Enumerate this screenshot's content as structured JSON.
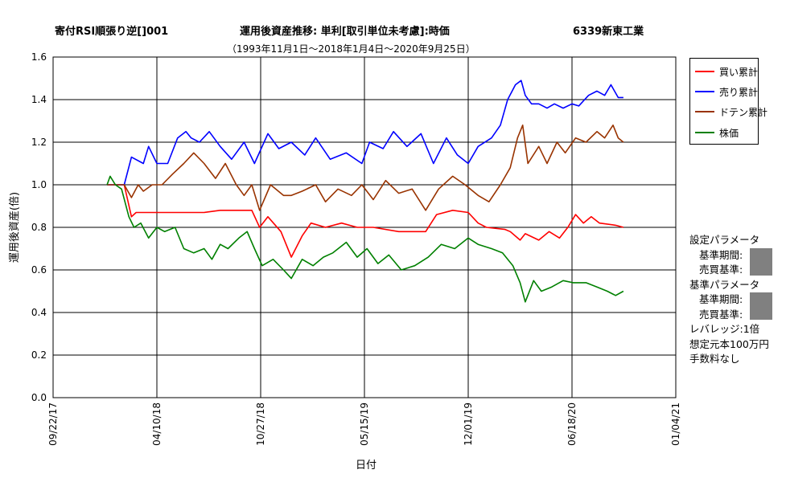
{
  "header": {
    "strategy": "寄付RSI順張り逆[]001",
    "title": "運用後資産推移: 単利[取引単位未考慮]:時価",
    "stock": "6339新東工業",
    "period": "（1993年11月1日～2018年1月4日～2020年9月25日）"
  },
  "legend": {
    "items": [
      {
        "label": "買い累計",
        "color": "#ff0000"
      },
      {
        "label": "売り累計",
        "color": "#0000ff"
      },
      {
        "label": "ドテン累計",
        "color": "#993300"
      },
      {
        "label": "株価",
        "color": "#008000"
      }
    ]
  },
  "params": {
    "setting_title": "設定パラメータ",
    "setting_period": "基準期間:",
    "setting_trade": "売買基準:",
    "base_title": "基準パラメータ",
    "base_period": "基準期間:",
    "base_trade": "売買基準:",
    "leverage": "レバレッジ:1倍",
    "capital": "想定元本100万円",
    "fee": "手数料なし"
  },
  "chart_data": {
    "type": "line",
    "xlabel": "日付",
    "ylabel": "運用後資産(倍)",
    "x_ticks": [
      "09/22/17",
      "04/10/18",
      "10/27/18",
      "05/15/19",
      "12/01/19",
      "06/18/20",
      "01/04/21"
    ],
    "y_ticks": [
      "0.0",
      "0.2",
      "0.4",
      "0.6",
      "0.8",
      "1.0",
      "1.2",
      "1.4",
      "1.6"
    ],
    "xlim": [
      "09/22/17",
      "01/04/21"
    ],
    "ylim": [
      0,
      1.6
    ],
    "grid": true,
    "legend_position": "right",
    "series": [
      {
        "name": "買い累計",
        "color": "#ff0000",
        "x": [
          "2018-01-04",
          "2018-02-06",
          "2018-02-20",
          "2018-03-01",
          "2018-03-25",
          "2018-05-22",
          "2018-07-01",
          "2018-07-10",
          "2018-08-10",
          "2018-10-10",
          "2018-10-25",
          "2018-11-10",
          "2018-12-05",
          "2018-12-25",
          "2019-01-15",
          "2019-02-01",
          "2019-03-01",
          "2019-04-01",
          "2019-05-01",
          "2019-06-01",
          "2019-07-20",
          "2019-08-15",
          "2019-09-10",
          "2019-10-01",
          "2019-11-01",
          "2019-12-01",
          "2019-12-20",
          "2020-01-05",
          "2020-02-10",
          "2020-02-20",
          "2020-03-10",
          "2020-03-20",
          "2020-04-15",
          "2020-05-05",
          "2020-05-25",
          "2020-06-10",
          "2020-06-25",
          "2020-07-10",
          "2020-07-25",
          "2020-08-10",
          "2020-09-10",
          "2020-09-25"
        ],
        "values": [
          1.0,
          1.0,
          0.85,
          0.87,
          0.87,
          0.87,
          0.87,
          0.87,
          0.88,
          0.88,
          0.8,
          0.85,
          0.78,
          0.66,
          0.76,
          0.82,
          0.8,
          0.82,
          0.8,
          0.8,
          0.78,
          0.78,
          0.78,
          0.86,
          0.88,
          0.87,
          0.82,
          0.8,
          0.79,
          0.78,
          0.74,
          0.77,
          0.74,
          0.78,
          0.75,
          0.8,
          0.86,
          0.82,
          0.85,
          0.82,
          0.81,
          0.8
        ]
      },
      {
        "name": "売り累計",
        "color": "#0000ff",
        "x": [
          "2018-01-04",
          "2018-02-06",
          "2018-02-20",
          "2018-03-15",
          "2018-03-25",
          "2018-04-10",
          "2018-05-01",
          "2018-05-20",
          "2018-06-05",
          "2018-06-15",
          "2018-07-01",
          "2018-07-20",
          "2018-08-10",
          "2018-09-01",
          "2018-09-25",
          "2018-10-15",
          "2018-11-10",
          "2018-12-01",
          "2018-12-25",
          "2019-01-20",
          "2019-02-10",
          "2019-03-10",
          "2019-04-10",
          "2019-05-10",
          "2019-05-25",
          "2019-06-20",
          "2019-07-10",
          "2019-08-05",
          "2019-09-01",
          "2019-09-25",
          "2019-10-20",
          "2019-11-10",
          "2019-12-01",
          "2019-12-20",
          "2020-01-15",
          "2020-02-01",
          "2020-02-15",
          "2020-03-01",
          "2020-03-12",
          "2020-03-20",
          "2020-04-01",
          "2020-04-15",
          "2020-05-01",
          "2020-05-15",
          "2020-06-01",
          "2020-06-18",
          "2020-07-01",
          "2020-07-20",
          "2020-08-05",
          "2020-08-20",
          "2020-09-01",
          "2020-09-15",
          "2020-09-25"
        ],
        "values": [
          1.0,
          1.0,
          1.13,
          1.1,
          1.18,
          1.1,
          1.1,
          1.22,
          1.25,
          1.22,
          1.2,
          1.25,
          1.18,
          1.12,
          1.2,
          1.1,
          1.24,
          1.17,
          1.2,
          1.14,
          1.22,
          1.12,
          1.15,
          1.1,
          1.2,
          1.17,
          1.25,
          1.18,
          1.24,
          1.1,
          1.22,
          1.14,
          1.1,
          1.18,
          1.22,
          1.28,
          1.4,
          1.47,
          1.49,
          1.42,
          1.38,
          1.38,
          1.36,
          1.38,
          1.36,
          1.38,
          1.37,
          1.42,
          1.44,
          1.42,
          1.47,
          1.41,
          1.41
        ]
      },
      {
        "name": "ドテン累計",
        "color": "#993300",
        "x": [
          "2018-01-04",
          "2018-02-06",
          "2018-02-20",
          "2018-03-05",
          "2018-03-15",
          "2018-04-01",
          "2018-04-20",
          "2018-05-10",
          "2018-06-01",
          "2018-06-20",
          "2018-07-10",
          "2018-08-01",
          "2018-08-20",
          "2018-09-10",
          "2018-09-25",
          "2018-10-10",
          "2018-10-25",
          "2018-11-15",
          "2018-12-10",
          "2018-12-25",
          "2019-01-15",
          "2019-02-10",
          "2019-03-01",
          "2019-03-25",
          "2019-04-20",
          "2019-05-10",
          "2019-06-01",
          "2019-06-25",
          "2019-07-20",
          "2019-08-15",
          "2019-09-10",
          "2019-10-05",
          "2019-11-01",
          "2019-11-25",
          "2019-12-20",
          "2020-01-10",
          "2020-02-01",
          "2020-02-20",
          "2020-03-05",
          "2020-03-15",
          "2020-03-25",
          "2020-04-15",
          "2020-05-01",
          "2020-05-20",
          "2020-06-05",
          "2020-06-25",
          "2020-07-15",
          "2020-08-05",
          "2020-08-20",
          "2020-09-05",
          "2020-09-15",
          "2020-09-25"
        ],
        "values": [
          1.0,
          1.0,
          0.94,
          1.0,
          0.97,
          1.0,
          1.0,
          1.05,
          1.1,
          1.15,
          1.1,
          1.03,
          1.1,
          1.0,
          0.95,
          1.0,
          0.88,
          1.0,
          0.95,
          0.95,
          0.97,
          1.0,
          0.92,
          0.98,
          0.95,
          1.0,
          0.93,
          1.02,
          0.96,
          0.98,
          0.88,
          0.98,
          1.04,
          1.0,
          0.95,
          0.92,
          1.0,
          1.08,
          1.22,
          1.28,
          1.1,
          1.18,
          1.1,
          1.2,
          1.15,
          1.22,
          1.2,
          1.25,
          1.22,
          1.28,
          1.22,
          1.2
        ]
      },
      {
        "name": "株価",
        "color": "#008000",
        "x": [
          "2018-01-04",
          "2018-01-10",
          "2018-01-20",
          "2018-02-01",
          "2018-02-15",
          "2018-02-25",
          "2018-03-10",
          "2018-03-25",
          "2018-04-10",
          "2018-04-25",
          "2018-05-15",
          "2018-06-01",
          "2018-06-20",
          "2018-07-10",
          "2018-07-25",
          "2018-08-10",
          "2018-08-25",
          "2018-09-15",
          "2018-10-01",
          "2018-10-15",
          "2018-10-30",
          "2018-11-20",
          "2018-12-10",
          "2018-12-25",
          "2019-01-15",
          "2019-02-05",
          "2019-02-25",
          "2019-03-15",
          "2019-04-10",
          "2019-05-01",
          "2019-05-20",
          "2019-06-10",
          "2019-07-01",
          "2019-07-25",
          "2019-08-20",
          "2019-09-15",
          "2019-10-10",
          "2019-11-05",
          "2019-12-01",
          "2019-12-20",
          "2020-01-15",
          "2020-02-05",
          "2020-02-25",
          "2020-03-10",
          "2020-03-20",
          "2020-04-05",
          "2020-04-20",
          "2020-05-10",
          "2020-06-01",
          "2020-06-20",
          "2020-07-15",
          "2020-08-05",
          "2020-08-25",
          "2020-09-10",
          "2020-09-25"
        ],
        "values": [
          1.0,
          1.04,
          1.0,
          0.98,
          0.85,
          0.8,
          0.82,
          0.75,
          0.8,
          0.78,
          0.8,
          0.7,
          0.68,
          0.7,
          0.65,
          0.72,
          0.7,
          0.75,
          0.78,
          0.7,
          0.62,
          0.65,
          0.6,
          0.56,
          0.65,
          0.62,
          0.66,
          0.68,
          0.73,
          0.66,
          0.7,
          0.63,
          0.67,
          0.6,
          0.62,
          0.66,
          0.72,
          0.7,
          0.75,
          0.72,
          0.7,
          0.68,
          0.62,
          0.54,
          0.45,
          0.55,
          0.5,
          0.52,
          0.55,
          0.54,
          0.54,
          0.52,
          0.5,
          0.48,
          0.5
        ]
      }
    ]
  }
}
